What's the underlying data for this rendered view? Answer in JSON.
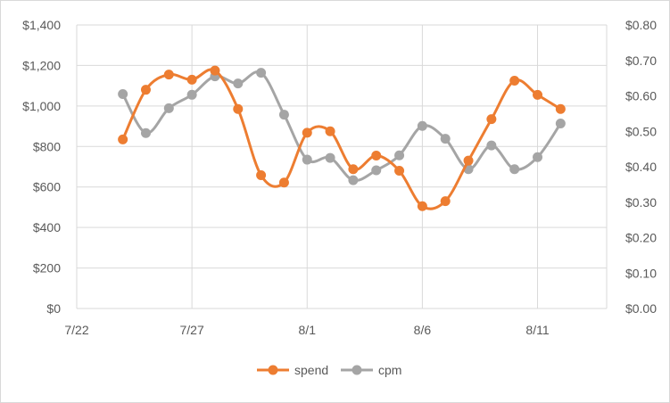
{
  "chart_data": {
    "type": "line",
    "x": [
      "7/24",
      "7/25",
      "7/26",
      "7/27",
      "7/28",
      "7/29",
      "7/30",
      "7/31",
      "8/1",
      "8/2",
      "8/3",
      "8/4",
      "8/5",
      "8/6",
      "8/7",
      "8/8",
      "8/9",
      "8/10",
      "8/11",
      "8/12"
    ],
    "x_ticks": [
      "7/22",
      "7/27",
      "8/1",
      "8/6",
      "8/11"
    ],
    "series": [
      {
        "name": "spend",
        "axis": "left",
        "color": "#ed7d31",
        "values": [
          835,
          1080,
          1155,
          1130,
          1175,
          985,
          658,
          622,
          868,
          875,
          688,
          755,
          680,
          505,
          530,
          730,
          935,
          1125,
          1055,
          985
        ]
      },
      {
        "name": "cpm",
        "axis": "right",
        "color": "#a5a5a5",
        "values": [
          0.605,
          0.495,
          0.565,
          0.603,
          0.655,
          0.635,
          0.665,
          0.547,
          0.42,
          0.425,
          0.362,
          0.39,
          0.432,
          0.515,
          0.479,
          0.393,
          0.46,
          0.393,
          0.427,
          0.522
        ]
      }
    ],
    "y_left": {
      "min": 0,
      "max": 1400,
      "ticks": [
        "$0",
        "$200",
        "$400",
        "$600",
        "$800",
        "$1,000",
        "$1,200",
        "$1,400"
      ]
    },
    "y_right": {
      "min": 0,
      "max": 0.8,
      "ticks": [
        "$0.00",
        "$0.10",
        "$0.20",
        "$0.30",
        "$0.40",
        "$0.50",
        "$0.60",
        "$0.70",
        "$0.80"
      ]
    },
    "legend": {
      "position": "bottom",
      "entries": [
        "spend",
        "cpm"
      ]
    },
    "grid": true,
    "title": "",
    "xlabel": "",
    "ylabel": ""
  },
  "colors": {
    "gridline": "#d9d9d9",
    "axis_text": "#595959",
    "border": "#d9d9d9"
  }
}
